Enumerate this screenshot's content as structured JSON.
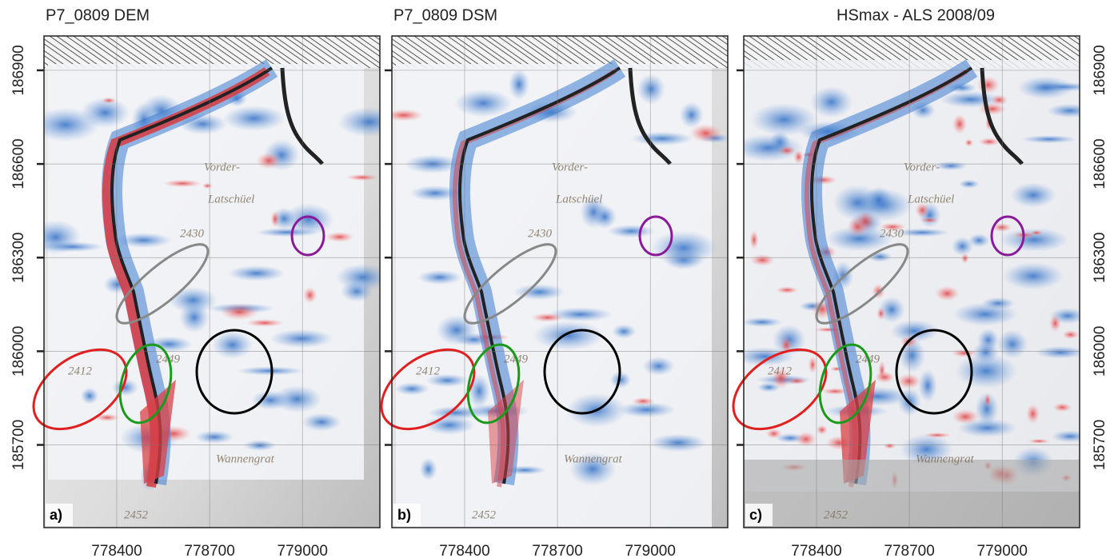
{
  "figure": {
    "xlim": [
      778165,
      779250
    ],
    "ylim": [
      185435,
      187010
    ],
    "xticks": [
      778400,
      778700,
      779000
    ],
    "yticks": [
      185700,
      186000,
      186300,
      186600,
      186900
    ],
    "grid": true,
    "panels": [
      {
        "title": "P7_0809 DEM",
        "label": "a)"
      },
      {
        "title": "P7_0809 DSM",
        "label": "b)"
      },
      {
        "title": "HSmax - ALS 2008/09",
        "label": "c)"
      }
    ],
    "map_labels": [
      "Vorder-",
      "Latschüel",
      "2430",
      "Wannengrat",
      "2452",
      "2412",
      "2449"
    ]
  }
}
